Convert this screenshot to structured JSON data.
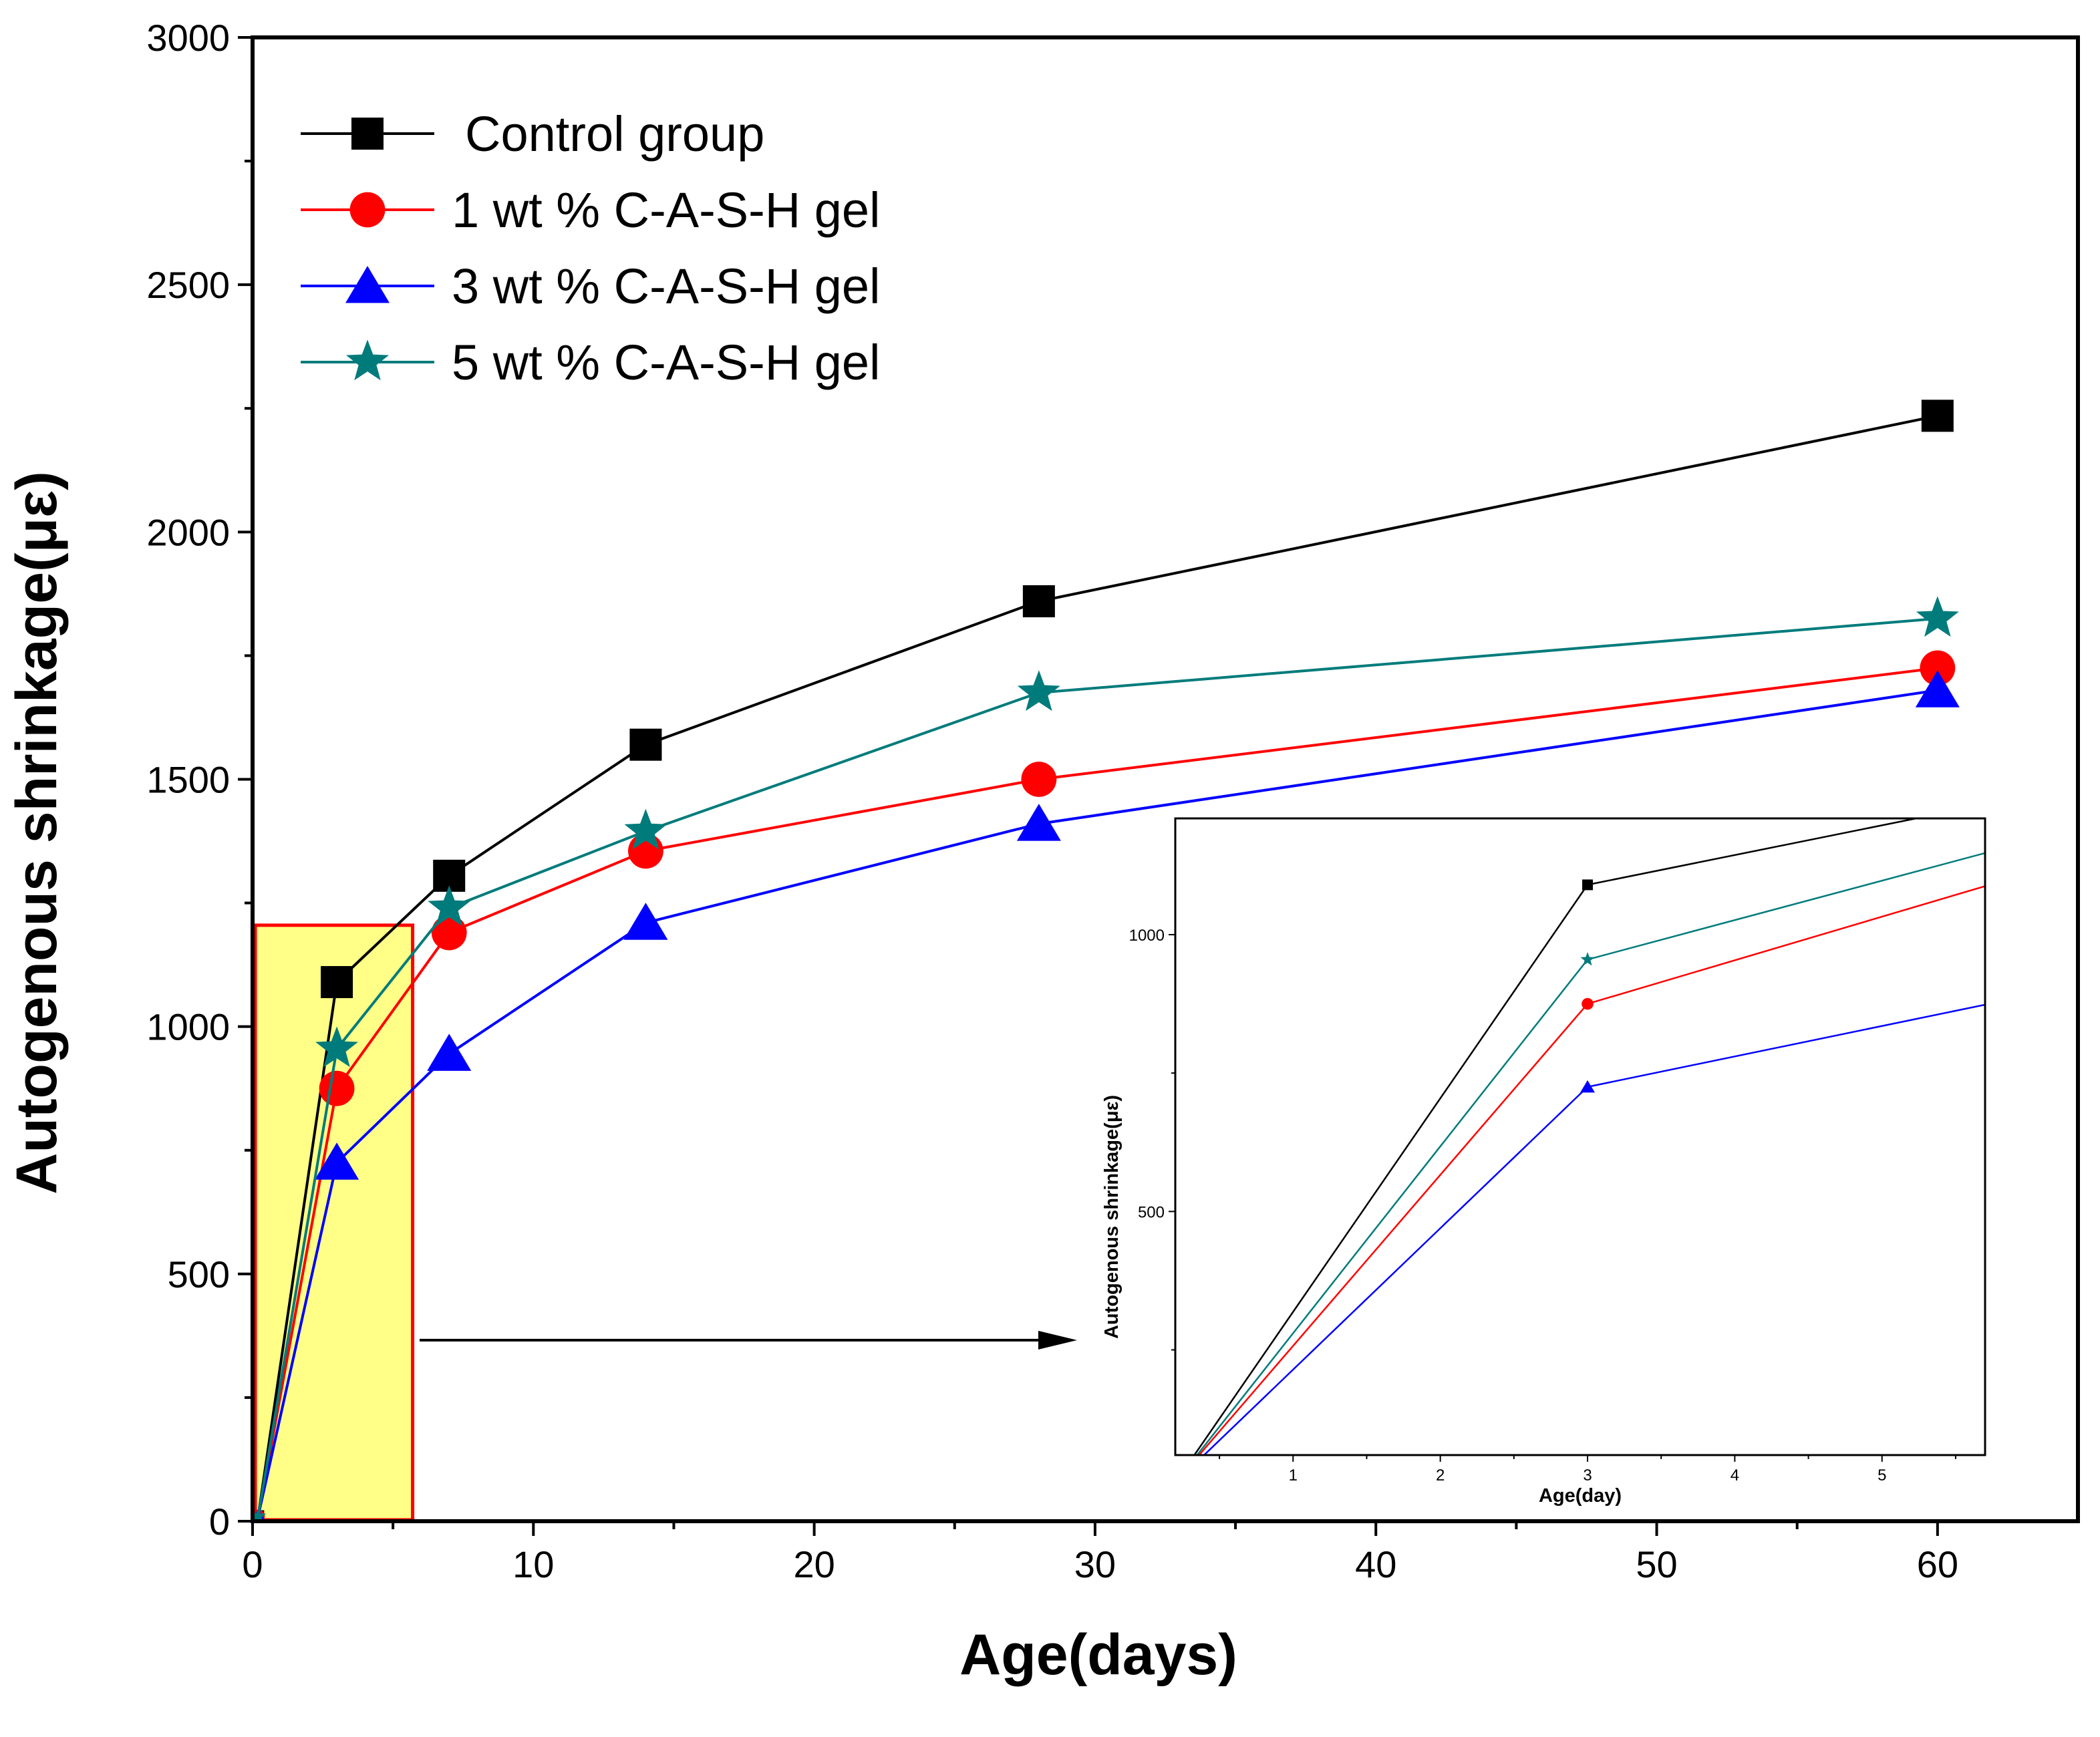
{
  "chart_data": {
    "type": "line",
    "xlabel": "Age(days)",
    "ylabel": "Autogenous shrinkage(με)",
    "xlim": [
      0,
      65
    ],
    "ylim": [
      0,
      3000
    ],
    "x_ticks": [
      "0",
      "10",
      "20",
      "30",
      "40",
      "50",
      "60"
    ],
    "y_ticks": [
      "0",
      "500",
      "1000",
      "1500",
      "2000",
      "2500",
      "3000"
    ],
    "legend_position": "top-left",
    "series": [
      {
        "name": "Control group",
        "color": "#000000",
        "marker": "square",
        "x": [
          0.2,
          3,
          7,
          14,
          28,
          60
        ],
        "y": [
          10,
          1090,
          1305,
          1570,
          1860,
          2235
        ]
      },
      {
        "name": "1 wt % C-A-S-H gel",
        "color": "#ff0000",
        "marker": "circle",
        "x": [
          0.2,
          3,
          7,
          14,
          28,
          60
        ],
        "y": [
          10,
          875,
          1190,
          1355,
          1500,
          1725
        ]
      },
      {
        "name": "3 wt % C-A-S-H gel",
        "color": "#0000ff",
        "marker": "triangle",
        "x": [
          0.2,
          3,
          7,
          14,
          28,
          60
        ],
        "y": [
          10,
          725,
          945,
          1210,
          1410,
          1680
        ]
      },
      {
        "name": "5 wt % C-A-S-H gel",
        "color": "#007b7b",
        "marker": "star",
        "x": [
          0.2,
          3,
          7,
          14,
          28,
          60
        ],
        "y": [
          10,
          955,
          1240,
          1395,
          1675,
          1825
        ]
      }
    ],
    "highlight_region": {
      "x": [
        0,
        5.7
      ],
      "y": [
        0,
        1205
      ],
      "fill": "#ffff88",
      "stroke": "#ff0000"
    },
    "inset": {
      "xlabel": "Age(day)",
      "ylabel": "Autogenous shrinkage(με)",
      "xlim": [
        0.2,
        5.7
      ],
      "ylim": [
        60,
        1210
      ],
      "x_ticks": [
        "1",
        "2",
        "3",
        "4",
        "5"
      ],
      "y_ticks": [
        "500",
        "1000"
      ]
    }
  }
}
